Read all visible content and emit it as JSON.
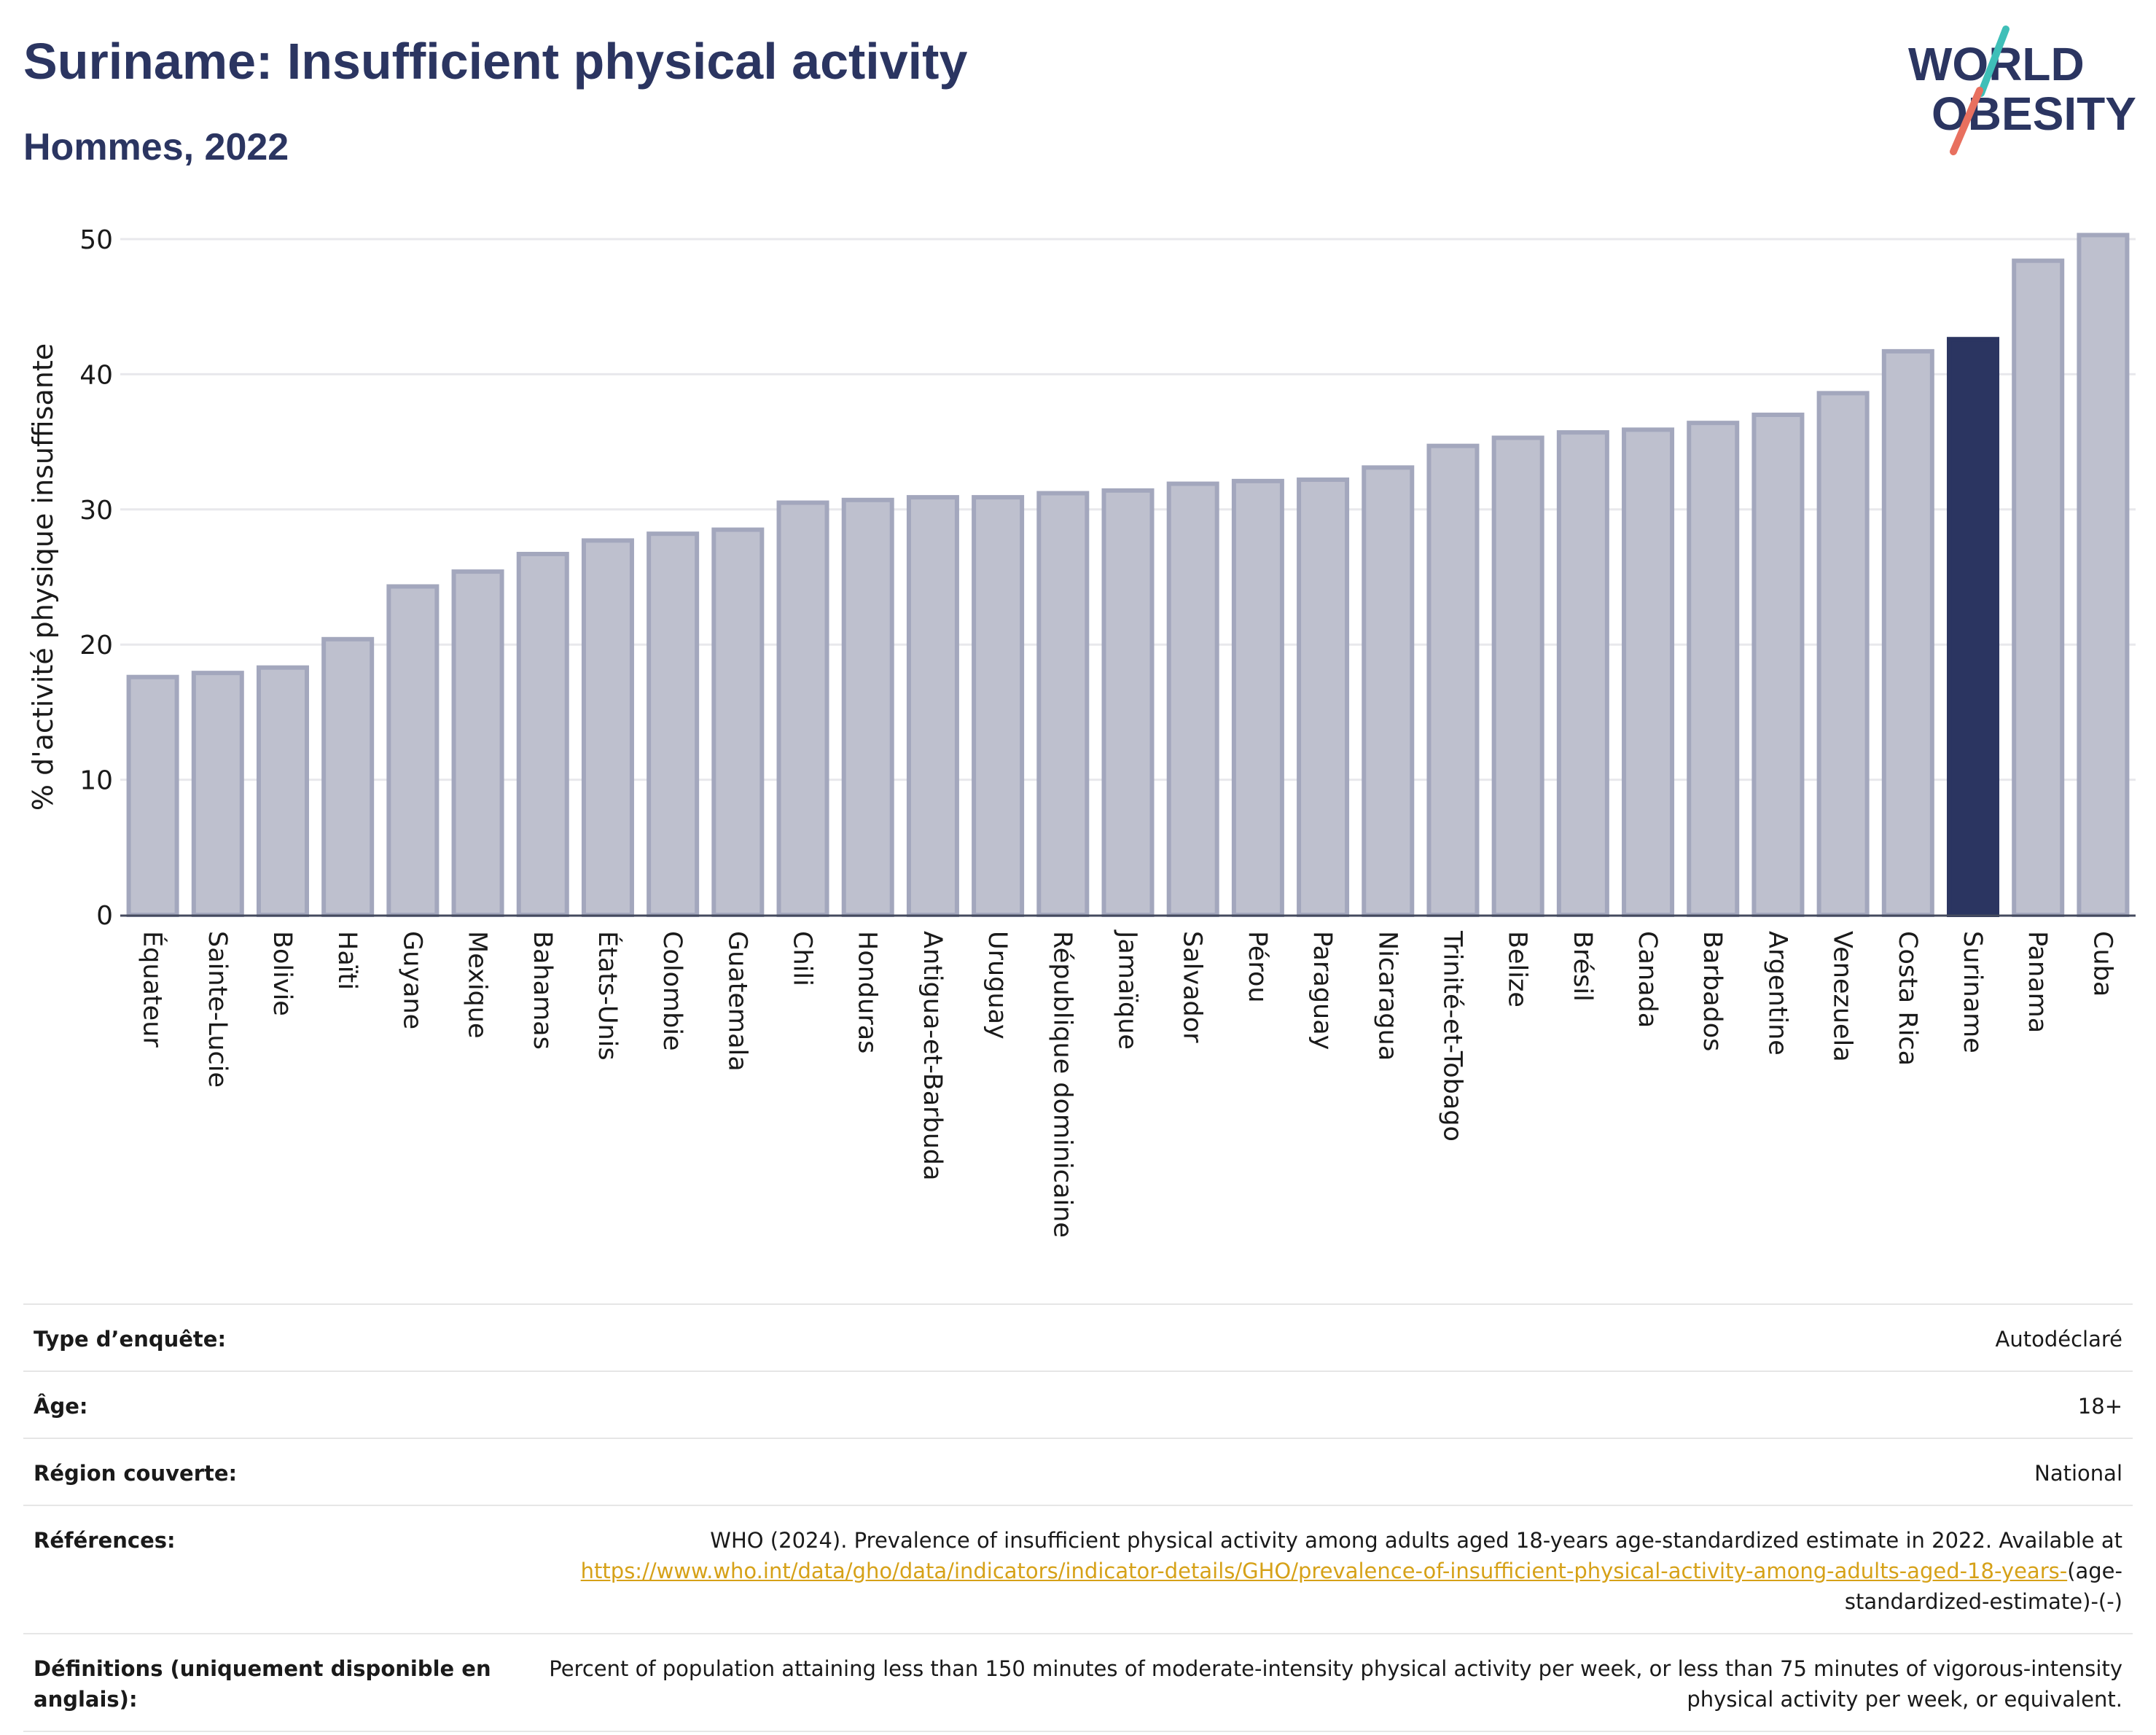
{
  "header": {
    "title": "Suriname: Insufficient physical activity",
    "subtitle": "Hommes, 2022",
    "logo_line1": "WORLD",
    "logo_line2": "OBESITY"
  },
  "colors": {
    "title": "#2b3561",
    "bar": "#bec0ce",
    "bar_border": "#a3a7bd",
    "bar_highlight": "#2b3561",
    "gridline": "#e8e8ec",
    "logo_teal": "#3fbfb8",
    "logo_coral": "#e8705f",
    "link": "#d6a118"
  },
  "chart_data": {
    "type": "bar",
    "ylabel": "% d'activité physique insuffisante",
    "xlabel": "",
    "ylim": [
      0,
      52
    ],
    "yticks": [
      0,
      10,
      20,
      30,
      40,
      50
    ],
    "grid": true,
    "highlight": "Suriname",
    "categories": [
      "Équateur",
      "Sainte-Lucie",
      "Bolivie",
      "Haïti",
      "Guyane",
      "Mexique",
      "Bahamas",
      "États-Unis",
      "Colombie",
      "Guatemala",
      "Chili",
      "Honduras",
      "Antigua-et-Barbuda",
      "Uruguay",
      "République dominicaine",
      "Jamaïque",
      "Salvador",
      "Pérou",
      "Paraguay",
      "Nicaragua",
      "Trinité-et-Tobago",
      "Belize",
      "Brésil",
      "Canada",
      "Barbados",
      "Argentine",
      "Venezuela",
      "Costa Rica",
      "Suriname",
      "Panama",
      "Cuba"
    ],
    "values": [
      17.6,
      17.9,
      18.3,
      20.4,
      24.3,
      25.4,
      26.7,
      27.7,
      28.2,
      28.5,
      30.5,
      30.7,
      30.9,
      30.9,
      31.2,
      31.4,
      31.9,
      32.1,
      32.2,
      33.1,
      34.7,
      35.3,
      35.7,
      35.9,
      36.4,
      37.0,
      38.6,
      41.7,
      42.6,
      48.4,
      50.3
    ]
  },
  "meta": {
    "survey_label": "Type d’enquête:",
    "survey_value": "Autodéclaré",
    "age_label": "Âge:",
    "age_value": "18+",
    "region_label": "Région couverte:",
    "region_value": "National",
    "refs_label": "Références:",
    "refs_text": "WHO (2024). Prevalence of insufficient physical activity among adults aged 18-years age-standardized estimate in 2022. Available at",
    "refs_link": "https://www.who.int/data/gho/data/indicators/indicator-details/GHO/prevalence-of-insufficient-physical-activity-among-adults-aged-18-years-",
    "refs_suffix": "(age-standardized-estimate)-(-)",
    "defs_label": "Définitions (uniquement disponible en anglais):",
    "defs_value": "Percent of population attaining less than 150 minutes of moderate-intensity physical activity per week, or less than 75 minutes of vigorous-intensity physical activity per week, or equivalent."
  }
}
